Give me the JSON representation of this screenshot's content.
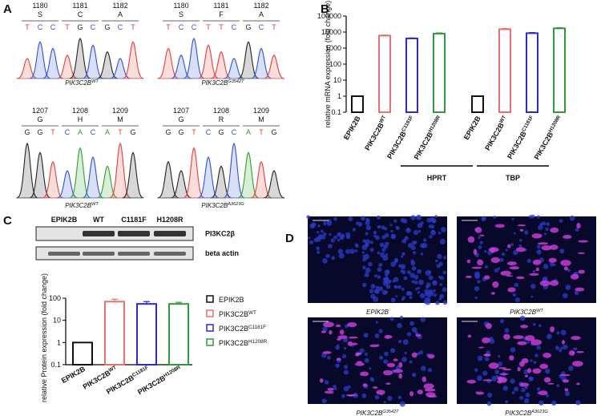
{
  "panel_labels": [
    "A",
    "B",
    "C",
    "D"
  ],
  "base_colors": {
    "A": "#2ca02c",
    "C": "#3050d8",
    "G": "#222222",
    "T": "#e0403a"
  },
  "chromatograms": [
    {
      "codons": [
        {
          "number": 1180,
          "aa": "S",
          "bases": [
            "T",
            "C",
            "C"
          ]
        },
        {
          "number": 1181,
          "aa": "C",
          "bases": [
            "T",
            "G",
            "C"
          ]
        },
        {
          "number": 1182,
          "aa": "A",
          "bases": [
            "G",
            "C",
            "T"
          ]
        }
      ],
      "caption": "PIK3C2B",
      "caption_sup": "WT"
    },
    {
      "codons": [
        {
          "number": 1180,
          "aa": "S",
          "bases": [
            "T",
            "C",
            "C"
          ]
        },
        {
          "number": 1181,
          "aa": "F",
          "bases": [
            "T",
            "T",
            "C"
          ]
        },
        {
          "number": 1182,
          "aa": "A",
          "bases": [
            "G",
            "C",
            "T"
          ]
        }
      ],
      "caption": "PIK3C2B",
      "caption_sup": "G3542T"
    },
    {
      "codons": [
        {
          "number": 1207,
          "aa": "G",
          "bases": [
            "G",
            "G",
            "T"
          ]
        },
        {
          "number": 1208,
          "aa": "H",
          "bases": [
            "C",
            "A",
            "C"
          ]
        },
        {
          "number": 1209,
          "aa": "M",
          "bases": [
            "A",
            "T",
            "G"
          ]
        }
      ],
      "caption": "PIK3C2B",
      "caption_sup": "WT"
    },
    {
      "codons": [
        {
          "number": 1207,
          "aa": "G",
          "bases": [
            "G",
            "G",
            "T"
          ]
        },
        {
          "number": 1208,
          "aa": "R",
          "bases": [
            "C",
            "G",
            "C"
          ]
        },
        {
          "number": 1209,
          "aa": "M",
          "bases": [
            "A",
            "T",
            "G"
          ]
        }
      ],
      "caption": "PIK3C2B",
      "caption_sup": "A3623G"
    }
  ],
  "chart_data": [
    {
      "type": "bar",
      "ylabel": "relative mRNA expression (fold change)",
      "log_scale": true,
      "ylim": [
        0.1,
        100000
      ],
      "yticks": [
        0.1,
        1,
        10,
        100,
        1000,
        10000,
        100000
      ],
      "groups": [
        "HPRT",
        "TBP"
      ],
      "series": [
        {
          "name": "EPIK2B",
          "color": "#111111",
          "values": [
            1,
            1
          ],
          "errors": [
            0.05,
            0.05
          ]
        },
        {
          "name": "PIK3C2B",
          "sup": "WT",
          "color": "#e8706e",
          "values": [
            6000,
            15000
          ],
          "errors": [
            500,
            1500
          ]
        },
        {
          "name": "PIK3C2B",
          "sup": "C1181F",
          "color": "#2b2bc8",
          "values": [
            4000,
            8500
          ],
          "errors": [
            300,
            800
          ]
        },
        {
          "name": "PIK3C2B",
          "sup": "H1208R",
          "color": "#2e9a3a",
          "values": [
            8000,
            17000
          ],
          "errors": [
            800,
            2000
          ]
        }
      ]
    },
    {
      "type": "bar",
      "ylabel": "relative Protein expression (fold change)",
      "log_scale": true,
      "ylim": [
        0.1,
        100
      ],
      "yticks": [
        0.1,
        1,
        10,
        100
      ],
      "legend": "right",
      "series": [
        {
          "name": "EPIK2B",
          "color": "#111111",
          "values": [
            1
          ]
        },
        {
          "name": "PIK3C2B",
          "sup": "WT",
          "color": "#e8706e",
          "values": [
            70
          ],
          "errors": [
            20
          ]
        },
        {
          "name": "PIK3C2B",
          "sup": "C1181F",
          "color": "#2b2bc8",
          "values": [
            55
          ],
          "errors": [
            15
          ]
        },
        {
          "name": "PIK3C2B",
          "sup": "H1208R",
          "color": "#2e9a3a",
          "values": [
            55
          ],
          "errors": [
            10
          ]
        }
      ]
    }
  ],
  "western_blot": {
    "lanes": [
      "EPIK2B",
      "WT",
      "C1181F",
      "H1208R"
    ],
    "bands": [
      "PI3KC2β",
      "beta actin"
    ]
  },
  "micrographs": [
    {
      "caption": "EPIK2B"
    },
    {
      "caption": "PIK3C2B",
      "caption_sup": "WT"
    },
    {
      "caption": "PIK3C2B",
      "caption_sup": "G3542T"
    },
    {
      "caption": "PIK3C2B",
      "caption_sup": "A3623G"
    }
  ]
}
